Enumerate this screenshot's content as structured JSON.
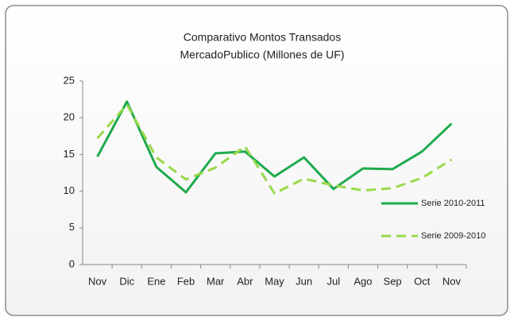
{
  "chart_data": {
    "type": "line",
    "title": "Comparativo Montos Transados",
    "subtitle": "MercadoPublico (Millones de UF)",
    "categories": [
      "Nov",
      "Dic",
      "Ene",
      "Feb",
      "Mar",
      "Abr",
      "May",
      "Jun",
      "Jul",
      "Ago",
      "Sep",
      "Oct",
      "Nov"
    ],
    "series": [
      {
        "name": "Serie 2010-2011",
        "color": "#1faa4b",
        "dash": false,
        "values": [
          14.7,
          22.2,
          13.3,
          9.85,
          15.15,
          15.4,
          12.0,
          14.6,
          10.3,
          13.1,
          13.0,
          15.4,
          19.2
        ]
      },
      {
        "name": "Serie 2009-2010",
        "color": "#99d94a",
        "dash": true,
        "values": [
          17.2,
          21.8,
          14.6,
          11.6,
          13.2,
          16.1,
          9.7,
          11.7,
          10.8,
          10.1,
          10.4,
          11.8,
          14.3
        ]
      }
    ],
    "ylim": [
      0,
      25
    ],
    "yticks": [
      0,
      5,
      10,
      15,
      20,
      25
    ],
    "legend": "right",
    "grid": false
  }
}
